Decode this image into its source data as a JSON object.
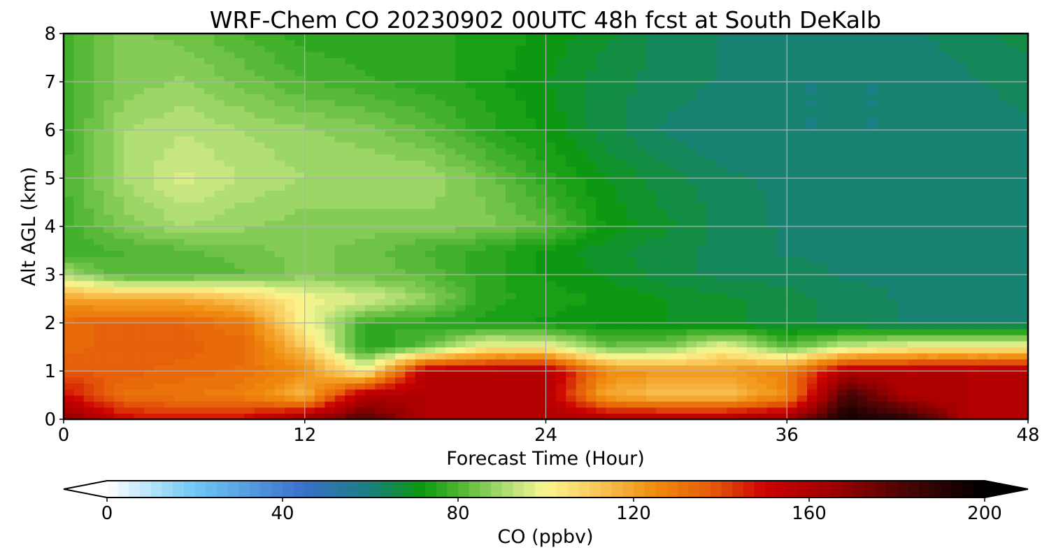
{
  "chart_data": {
    "type": "heatmap",
    "title": "WRF-Chem CO  20230902 00UTC 48h fcst at South DeKalb",
    "xlabel": "Forecast Time (Hour)",
    "ylabel": "Alt AGL (km)",
    "xlim": [
      0,
      48
    ],
    "ylim": [
      0,
      8
    ],
    "x_ticks": [
      "0",
      "12",
      "24",
      "36",
      "48"
    ],
    "y_ticks": [
      "0",
      "1",
      "2",
      "3",
      "4",
      "5",
      "6",
      "7",
      "8"
    ],
    "grid": true,
    "x": [
      0,
      3,
      6,
      9,
      12,
      15,
      18,
      21,
      24,
      27,
      30,
      33,
      36,
      39,
      42,
      45,
      48
    ],
    "y": [
      0,
      0.5,
      1,
      1.5,
      2,
      2.5,
      3,
      3.5,
      4,
      5,
      6,
      7,
      8
    ],
    "values": [
      [
        170,
        150,
        148,
        150,
        165,
        180,
        160,
        158,
        160,
        160,
        160,
        160,
        165,
        195,
        190,
        160,
        158
      ],
      [
        150,
        132,
        130,
        128,
        115,
        160,
        160,
        160,
        158,
        118,
        112,
        112,
        125,
        185,
        160,
        160,
        158
      ],
      [
        138,
        136,
        134,
        132,
        125,
        100,
        158,
        160,
        160,
        126,
        122,
        122,
        128,
        160,
        160,
        160,
        160
      ],
      [
        134,
        136,
        136,
        134,
        112,
        74,
        82,
        100,
        100,
        84,
        86,
        100,
        82,
        95,
        100,
        100,
        100
      ],
      [
        134,
        136,
        135,
        130,
        100,
        78,
        76,
        74,
        72,
        70,
        70,
        68,
        66,
        64,
        62,
        62,
        62
      ],
      [
        120,
        118,
        118,
        112,
        100,
        96,
        88,
        76,
        74,
        72,
        70,
        68,
        66,
        64,
        62,
        62,
        62
      ],
      [
        90,
        80,
        80,
        82,
        86,
        84,
        82,
        76,
        72,
        70,
        66,
        64,
        64,
        62,
        62,
        62,
        62
      ],
      [
        78,
        80,
        82,
        84,
        86,
        84,
        80,
        76,
        72,
        68,
        66,
        64,
        62,
        62,
        62,
        62,
        62
      ],
      [
        78,
        86,
        90,
        88,
        86,
        86,
        86,
        86,
        82,
        72,
        68,
        64,
        62,
        62,
        62,
        62,
        62
      ],
      [
        80,
        90,
        96,
        92,
        90,
        90,
        90,
        84,
        76,
        70,
        66,
        63,
        62,
        62,
        62,
        62,
        62
      ],
      [
        78,
        90,
        92,
        90,
        88,
        86,
        82,
        76,
        72,
        66,
        62,
        60,
        60,
        60,
        60,
        60,
        62
      ],
      [
        78,
        86,
        88,
        84,
        80,
        78,
        76,
        74,
        70,
        66,
        64,
        62,
        60,
        60,
        60,
        62,
        64
      ],
      [
        78,
        86,
        84,
        80,
        76,
        76,
        76,
        74,
        72,
        68,
        64,
        62,
        62,
        62,
        62,
        64,
        66
      ]
    ],
    "colorbar": {
      "label": "CO  (ppbv)",
      "range": [
        0,
        200
      ],
      "ticks": [
        "0",
        "40",
        "80",
        "120",
        "160",
        "200"
      ],
      "extend": "both",
      "levels": 80,
      "colors": [
        {
          "v": 0,
          "c": "#ffffff"
        },
        {
          "v": 20,
          "c": "#6ec8f5"
        },
        {
          "v": 45,
          "c": "#3a6fc9"
        },
        {
          "v": 60,
          "c": "#1a7f7f"
        },
        {
          "v": 72,
          "c": "#0b9a0b"
        },
        {
          "v": 82,
          "c": "#5ebc3c"
        },
        {
          "v": 92,
          "c": "#b9e27a"
        },
        {
          "v": 100,
          "c": "#fbf691"
        },
        {
          "v": 112,
          "c": "#f9c657"
        },
        {
          "v": 125,
          "c": "#f08b0d"
        },
        {
          "v": 138,
          "c": "#e45a0a"
        },
        {
          "v": 150,
          "c": "#cc0101"
        },
        {
          "v": 165,
          "c": "#a00000"
        },
        {
          "v": 182,
          "c": "#4a0404"
        },
        {
          "v": 200,
          "c": "#000000"
        }
      ]
    }
  }
}
